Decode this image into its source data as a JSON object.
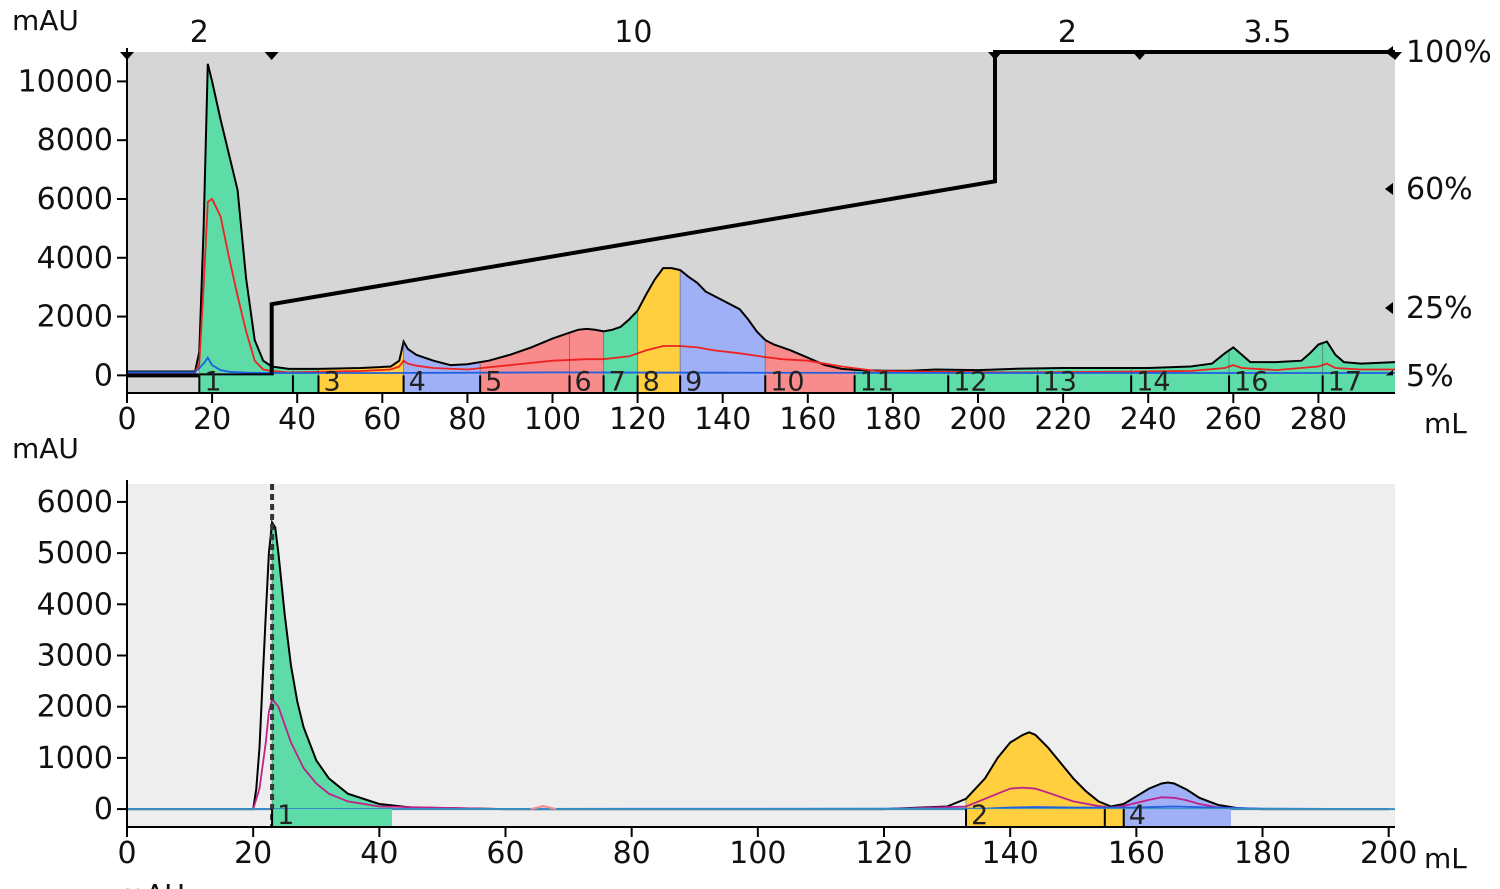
{
  "colors": {
    "plot_bg_top": "#d6d6d6",
    "plot_bg_bottom": "#eeeeee",
    "green": "#5ddca8",
    "yellow": "#ffcf40",
    "blue": "#9fb0f6",
    "red": "#f88c8c",
    "uv_line": "#000000",
    "trace_red": "#ee2222",
    "trace_blue": "#1f5fe0",
    "trace_magenta": "#c0208a",
    "baseline": "#3a8fbf",
    "gradient": "#000000"
  },
  "chart_data": [
    {
      "type": "area",
      "y_unit": "mAU",
      "x_unit": "mL",
      "xlim": [
        0,
        298
      ],
      "ylim": [
        -600,
        11000
      ],
      "x_ticks": [
        0,
        20,
        40,
        60,
        80,
        100,
        120,
        140,
        160,
        180,
        200,
        220,
        240,
        260,
        280
      ],
      "y_ticks": [
        0,
        2000,
        4000,
        6000,
        8000,
        10000
      ],
      "grid": false,
      "flow_labels": [
        {
          "x": 17,
          "text": "2"
        },
        {
          "x": 119,
          "text": "10"
        },
        {
          "x": 221,
          "text": "2"
        },
        {
          "x": 268,
          "text": "3.5"
        }
      ],
      "flow_markers_x": [
        0,
        34,
        204,
        238,
        298
      ],
      "gradient_percent_labels": [
        {
          "value": 100,
          "text": "100%"
        },
        {
          "value": 60,
          "text": "60%"
        },
        {
          "value": 25,
          "text": "25%"
        },
        {
          "value": 5,
          "text": "5%"
        }
      ],
      "gradient": {
        "x": [
          0,
          34,
          34,
          204,
          204,
          298
        ],
        "percent": [
          0,
          0,
          22,
          60,
          100,
          100
        ]
      },
      "series": [
        {
          "x": [
            0,
            16,
            17,
            18,
            19,
            20,
            22,
            24,
            26,
            28,
            30,
            32,
            34,
            38,
            45,
            55,
            62,
            64,
            65,
            66,
            68,
            72,
            76,
            80,
            85,
            90,
            95,
            100,
            104,
            106,
            108,
            110,
            112,
            114,
            116,
            118,
            120,
            122,
            124,
            126,
            128,
            130,
            132,
            134,
            136,
            140,
            144,
            146,
            148,
            150,
            152,
            154,
            156,
            160,
            164,
            168,
            172,
            178,
            184,
            190,
            200,
            210,
            220,
            230,
            240,
            250,
            255,
            258,
            260,
            262,
            264,
            270,
            276,
            278,
            280,
            282,
            284,
            286,
            290,
            298
          ],
          "values": [
            130,
            130,
            800,
            5000,
            10600,
            10000,
            8700,
            7500,
            6300,
            3300,
            1200,
            500,
            300,
            220,
            220,
            250,
            300,
            500,
            1150,
            900,
            700,
            500,
            350,
            380,
            500,
            700,
            950,
            1250,
            1450,
            1550,
            1580,
            1550,
            1500,
            1550,
            1650,
            1900,
            2200,
            2750,
            3250,
            3650,
            3650,
            3580,
            3350,
            3150,
            2850,
            2550,
            2250,
            1900,
            1500,
            1200,
            1050,
            950,
            850,
            600,
            350,
            220,
            180,
            160,
            160,
            200,
            180,
            230,
            250,
            250,
            250,
            300,
            400,
            750,
            950,
            700,
            450,
            450,
            500,
            750,
            1050,
            1150,
            700,
            450,
            400,
            450
          ]
        },
        {
          "x": [
            0,
            16,
            17,
            18,
            19,
            20,
            22,
            24,
            26,
            28,
            30,
            32,
            34,
            38,
            45,
            55,
            62,
            64,
            65,
            66,
            68,
            72,
            80,
            90,
            100,
            108,
            112,
            118,
            122,
            126,
            130,
            134,
            138,
            144,
            150,
            154,
            160,
            168,
            176,
            190,
            210,
            230,
            250,
            258,
            260,
            262,
            270,
            280,
            282,
            284,
            290,
            298
          ],
          "values": [
            100,
            100,
            400,
            3000,
            5900,
            6000,
            5400,
            4000,
            2700,
            1500,
            500,
            200,
            150,
            100,
            120,
            150,
            200,
            300,
            500,
            400,
            330,
            250,
            200,
            350,
            500,
            550,
            550,
            650,
            850,
            1000,
            1000,
            950,
            850,
            750,
            620,
            550,
            500,
            300,
            150,
            120,
            100,
            120,
            150,
            250,
            350,
            250,
            180,
            300,
            400,
            250,
            200,
            200
          ]
        },
        {
          "x": [
            0,
            16,
            18,
            19,
            20,
            22,
            24,
            28,
            34,
            60,
            100,
            140,
            200,
            298
          ],
          "values": [
            100,
            100,
            400,
            600,
            350,
            180,
            120,
            90,
            80,
            80,
            100,
            90,
            80,
            80
          ]
        }
      ],
      "fractions": [
        {
          "label": "1",
          "start": 17,
          "end": 39
        },
        {
          "label": "",
          "start": 39,
          "end": 45
        },
        {
          "label": "3",
          "start": 45,
          "end": 65
        },
        {
          "label": "4",
          "start": 65,
          "end": 83
        },
        {
          "label": "5",
          "start": 83,
          "end": 104
        },
        {
          "label": "6",
          "start": 104,
          "end": 112
        },
        {
          "label": "7",
          "start": 112,
          "end": 120
        },
        {
          "label": "8",
          "start": 120,
          "end": 130
        },
        {
          "label": "9",
          "start": 130,
          "end": 150
        },
        {
          "label": "10",
          "start": 150,
          "end": 171
        },
        {
          "label": "11",
          "start": 171,
          "end": 193
        },
        {
          "label": "12",
          "start": 193,
          "end": 214
        },
        {
          "label": "13",
          "start": 214,
          "end": 236
        },
        {
          "label": "14",
          "start": 236,
          "end": 259
        },
        {
          "label": "16",
          "start": 259,
          "end": 281
        },
        {
          "label": "17",
          "start": 281,
          "end": 298
        }
      ],
      "fraction_colors": [
        "#5ddca8",
        "#5ddca8",
        "#ffcf40",
        "#9fb0f6",
        "#f88c8c",
        "#f88c8c",
        "#5ddca8",
        "#ffcf40",
        "#9fb0f6",
        "#f88c8c",
        "#5ddca8",
        "#5ddca8",
        "#5ddca8",
        "#5ddca8",
        "#5ddca8",
        "#5ddca8"
      ]
    },
    {
      "type": "area",
      "y_unit": "mAU",
      "x_unit": "mL",
      "xlim": [
        0,
        201
      ],
      "ylim": [
        -350,
        6350
      ],
      "x_ticks": [
        0,
        20,
        40,
        60,
        80,
        100,
        120,
        140,
        160,
        180,
        200
      ],
      "y_ticks": [
        0,
        1000,
        2000,
        3000,
        4000,
        5000,
        6000
      ],
      "grid": false,
      "marker_line_x": 23,
      "series": [
        {
          "x": [
            0,
            20,
            20.5,
            21,
            21.5,
            22,
            22.5,
            23,
            23.5,
            24,
            25,
            26,
            27,
            28,
            30,
            32,
            35,
            40,
            45,
            60,
            120,
            130,
            133,
            136,
            138,
            140,
            142,
            143,
            144,
            146,
            148,
            150,
            152,
            154,
            156,
            158,
            160,
            162,
            164,
            165,
            166,
            168,
            170,
            173,
            176,
            180,
            200
          ],
          "values": [
            0,
            0,
            400,
            1200,
            2500,
            3800,
            5000,
            5600,
            5500,
            5000,
            3800,
            2800,
            2100,
            1600,
            950,
            600,
            300,
            100,
            30,
            0,
            0,
            50,
            200,
            600,
            1000,
            1300,
            1450,
            1500,
            1450,
            1200,
            900,
            600,
            350,
            150,
            50,
            100,
            250,
            400,
            500,
            520,
            500,
            380,
            220,
            80,
            20,
            0,
            0
          ]
        },
        {
          "x": [
            0,
            20,
            21,
            22,
            22.5,
            23,
            24,
            25,
            26,
            28,
            30,
            32,
            35,
            40,
            60,
            120,
            133,
            136,
            138,
            140,
            142,
            144,
            146,
            150,
            154,
            156,
            158,
            160,
            162,
            164,
            166,
            168,
            170,
            173,
            180,
            200
          ],
          "values": [
            0,
            0,
            400,
            1300,
            1900,
            2150,
            2000,
            1650,
            1300,
            800,
            500,
            300,
            150,
            50,
            0,
            0,
            50,
            200,
            300,
            400,
            420,
            400,
            320,
            150,
            60,
            30,
            60,
            120,
            180,
            230,
            220,
            170,
            100,
            30,
            0,
            0
          ]
        },
        {
          "x": [
            0,
            136,
            140,
            144,
            150,
            160,
            166,
            172,
            180,
            200
          ],
          "values": [
            0,
            10,
            30,
            40,
            30,
            30,
            50,
            30,
            10,
            0
          ]
        }
      ],
      "small_peak": {
        "x": [
          64,
          66,
          68
        ],
        "values": [
          0,
          60,
          0
        ]
      },
      "fractions": [
        {
          "label": "1",
          "start": 23,
          "end": 42
        },
        {
          "label": "2",
          "start": 133,
          "end": 155
        },
        {
          "label": "",
          "start": 155,
          "end": 158
        },
        {
          "label": "4",
          "start": 158,
          "end": 175
        }
      ],
      "fraction_colors": [
        "#5ddca8",
        "#ffcf40",
        "#ffcf40",
        "#9fb0f6"
      ],
      "cut_off_label": "mAU"
    }
  ]
}
